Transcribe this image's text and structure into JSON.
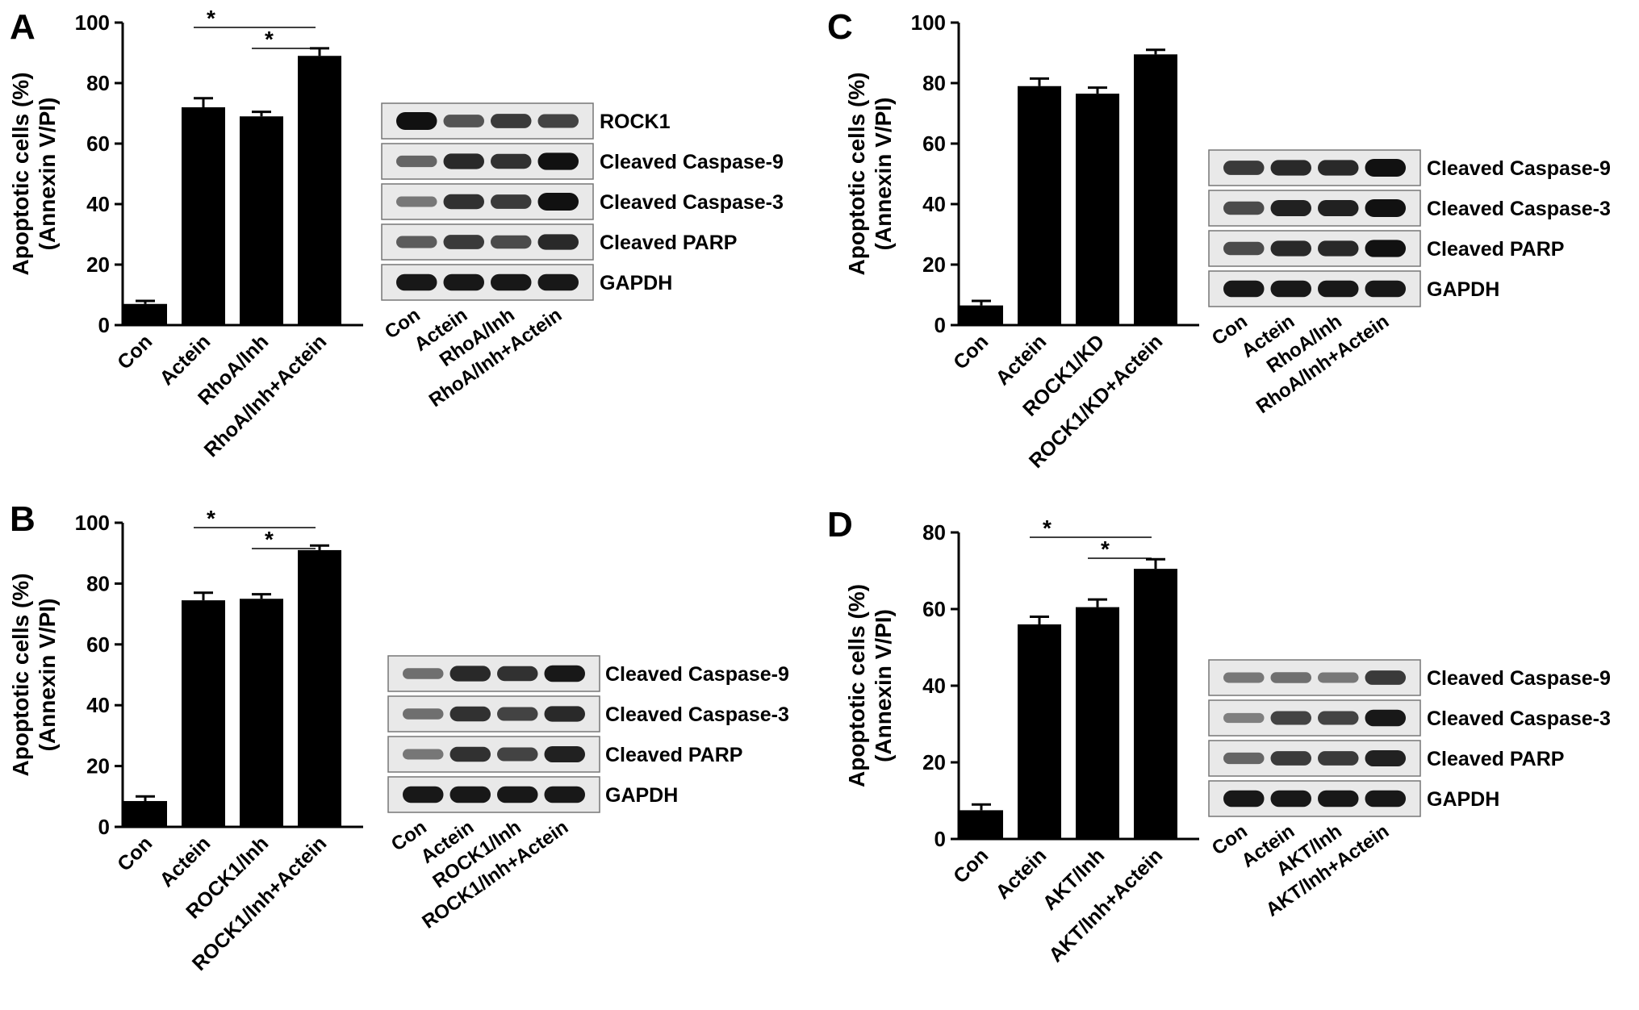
{
  "chart_data": [
    {
      "panel": "A",
      "type": "bar",
      "ylabel_line1": "Apoptotic cells (%)",
      "ylabel_line2": "(Annexin V/PI)",
      "ylim": [
        0,
        100
      ],
      "yticks": [
        0,
        20,
        40,
        60,
        80,
        100
      ],
      "categories": [
        "Con",
        "Actein",
        "RhoA/Inh",
        "RhoA/Inh+Actein"
      ],
      "values": [
        7,
        72,
        69,
        89
      ],
      "errors": [
        1,
        3,
        1.5,
        2.5
      ],
      "significance": [
        {
          "from": 1,
          "to": 3,
          "label": "*"
        },
        {
          "from": 2,
          "to": 3,
          "label": "*"
        }
      ],
      "blot": {
        "proteins": [
          "ROCK1",
          "Cleaved Caspase-9",
          "Cleaved Caspase-3",
          "Cleaved PARP",
          "GAPDH"
        ],
        "lanes": [
          "Con",
          "Actein",
          "RhoA/Inh",
          "RhoA/Inh+Actein"
        ],
        "intensity": [
          [
            1.0,
            0.55,
            0.7,
            0.65
          ],
          [
            0.45,
            0.8,
            0.75,
            0.95
          ],
          [
            0.35,
            0.75,
            0.7,
            1.0
          ],
          [
            0.5,
            0.7,
            0.6,
            0.8
          ],
          [
            0.9,
            0.9,
            0.9,
            0.9
          ]
        ]
      }
    },
    {
      "panel": "B",
      "type": "bar",
      "ylabel_line1": "Apoptotic cells (%)",
      "ylabel_line2": "(Annexin V/PI)",
      "ylim": [
        0,
        100
      ],
      "yticks": [
        0,
        20,
        40,
        60,
        80,
        100
      ],
      "categories": [
        "Con",
        "Actein",
        "ROCK1/Inh",
        "ROCK1/Inh+Actein"
      ],
      "values": [
        8.5,
        74.5,
        75,
        91
      ],
      "errors": [
        1.5,
        2.5,
        1.5,
        1.5
      ],
      "significance": [
        {
          "from": 1,
          "to": 3,
          "label": "*"
        },
        {
          "from": 2,
          "to": 3,
          "label": "*"
        }
      ],
      "blot": {
        "proteins": [
          "Cleaved Caspase-9",
          "Cleaved Caspase-3",
          "Cleaved PARP",
          "GAPDH"
        ],
        "lanes": [
          "Con",
          "Actein",
          "ROCK1/Inh",
          "ROCK1/Inh+Actein"
        ],
        "intensity": [
          [
            0.4,
            0.8,
            0.75,
            0.9
          ],
          [
            0.4,
            0.75,
            0.65,
            0.8
          ],
          [
            0.35,
            0.75,
            0.65,
            0.85
          ],
          [
            0.9,
            0.9,
            0.9,
            0.9
          ]
        ]
      }
    },
    {
      "panel": "C",
      "type": "bar",
      "ylabel_line1": "Apoptotic cells (%)",
      "ylabel_line2": "(Annexin V/PI)",
      "ylim": [
        0,
        100
      ],
      "yticks": [
        0,
        20,
        40,
        60,
        80,
        100
      ],
      "categories": [
        "Con",
        "Actein",
        "ROCK1/KD",
        "ROCK1/KD+Actein"
      ],
      "values": [
        6.5,
        79,
        76.5,
        89.5
      ],
      "errors": [
        1.5,
        2.5,
        2,
        1.5
      ],
      "significance": [],
      "blot": {
        "proteins": [
          "Cleaved Caspase-9",
          "Cleaved Caspase-3",
          "Cleaved PARP",
          "GAPDH"
        ],
        "lanes": [
          "Con",
          "Actein",
          "RhoA/Inh",
          "RhoA/Inh+Actein"
        ],
        "intensity": [
          [
            0.7,
            0.8,
            0.8,
            1.0
          ],
          [
            0.6,
            0.85,
            0.85,
            1.0
          ],
          [
            0.6,
            0.8,
            0.8,
            0.95
          ],
          [
            0.9,
            0.9,
            0.9,
            0.9
          ]
        ]
      }
    },
    {
      "panel": "D",
      "type": "bar",
      "ylabel_line1": "Apoptotic cells (%)",
      "ylabel_line2": "(Annexin V/PI)",
      "ylim": [
        0,
        80
      ],
      "yticks": [
        0,
        20,
        40,
        60,
        80
      ],
      "categories": [
        "Con",
        "Actein",
        "AKT/Inh",
        "AKT/Inh+Actein"
      ],
      "values": [
        7.5,
        56,
        60.5,
        70.5
      ],
      "errors": [
        1.5,
        2,
        2,
        2.5
      ],
      "significance": [
        {
          "from": 1,
          "to": 3,
          "label": "*"
        },
        {
          "from": 2,
          "to": 3,
          "label": "*"
        }
      ],
      "blot": {
        "proteins": [
          "Cleaved Caspase-9",
          "Cleaved Caspase-3",
          "Cleaved PARP",
          "GAPDH"
        ],
        "lanes": [
          "Con",
          "Actein",
          "AKT/Inh",
          "AKT/Inh+Actein"
        ],
        "intensity": [
          [
            0.35,
            0.4,
            0.35,
            0.7
          ],
          [
            0.3,
            0.65,
            0.65,
            0.9
          ],
          [
            0.45,
            0.7,
            0.7,
            0.85
          ],
          [
            0.9,
            0.9,
            0.9,
            0.9
          ]
        ]
      }
    }
  ],
  "colors": {
    "bar": "#000000",
    "axis": "#000000",
    "blot_bg": "#e9e9e9",
    "band": "#111111"
  }
}
